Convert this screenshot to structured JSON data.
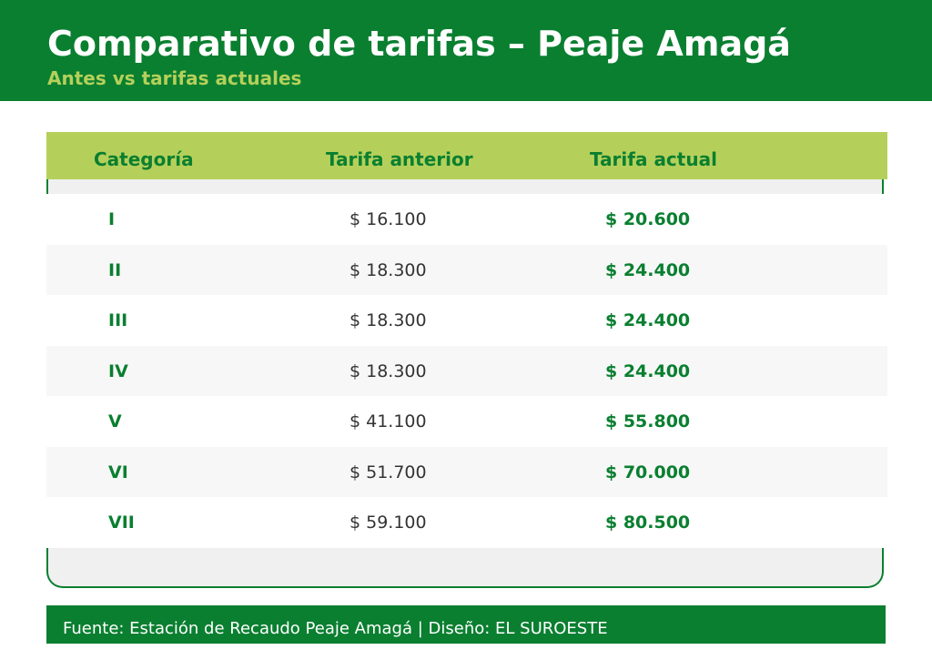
{
  "header": {
    "title": "Comparativo de tarifas – Peaje Amagá",
    "subtitle": "Antes vs tarifas actuales"
  },
  "table": {
    "columns": [
      "Categoría",
      "Tarifa anterior",
      "Tarifa actual"
    ],
    "rows": [
      {
        "categoria": "I",
        "anterior": "$ 16.100",
        "actual": "$ 20.600"
      },
      {
        "categoria": "II",
        "anterior": "$ 18.300",
        "actual": "$ 24.400"
      },
      {
        "categoria": "III",
        "anterior": "$ 18.300",
        "actual": "$ 24.400"
      },
      {
        "categoria": "IV",
        "anterior": "$ 18.300",
        "actual": "$ 24.400"
      },
      {
        "categoria": "V",
        "anterior": "$ 41.100",
        "actual": "$ 55.800"
      },
      {
        "categoria": "VI",
        "anterior": "$ 51.700",
        "actual": "$ 70.000"
      },
      {
        "categoria": "VII",
        "anterior": "$ 59.100",
        "actual": "$ 80.500"
      }
    ]
  },
  "footer": {
    "text": "Fuente: Estación de Recaudo Peaje Amagá | Diseño: EL SUROESTE"
  },
  "colors": {
    "brand_green": "#0a7f30",
    "accent_lime": "#b5d05a",
    "row_alt": "#f7f7f7",
    "text_dark": "#333333"
  }
}
